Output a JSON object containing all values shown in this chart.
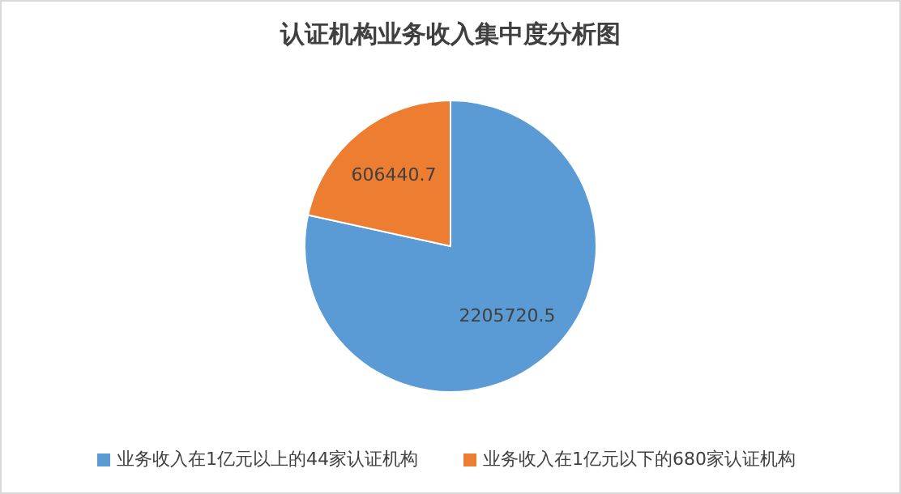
{
  "chart_data": {
    "type": "pie",
    "title": "认证机构业务收入集中度分析图",
    "categories": [
      "业务收入在1亿元以上的44家认证机构",
      "业务收入在1亿元以下的680家认证机构"
    ],
    "values": [
      2205720.5,
      606440.7
    ],
    "colors": [
      "#5b9bd5",
      "#ed7d31"
    ],
    "data_labels": true,
    "legend": "bottom"
  }
}
